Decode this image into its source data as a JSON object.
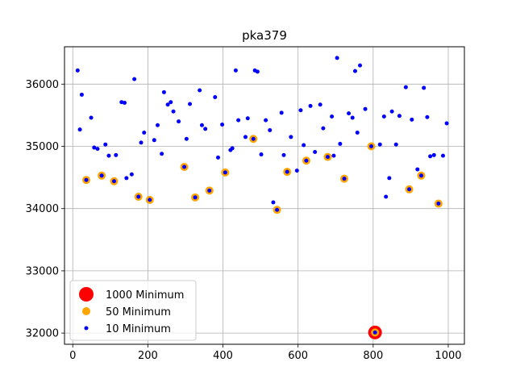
{
  "chart_data": {
    "type": "scatter",
    "title": "pka379",
    "xlabel": "",
    "ylabel": "",
    "xlim": [
      -22,
      1043
    ],
    "ylim": [
      31820,
      36600
    ],
    "xticks": [
      0,
      200,
      400,
      600,
      800,
      1000
    ],
    "yticks": [
      32000,
      33000,
      34000,
      35000,
      36000
    ],
    "grid": true,
    "legend_position": "lower-left",
    "series": [
      {
        "name": "1000 Minimum",
        "color": "#ff0000",
        "marker": "large-circle",
        "points": [
          [
            805,
            32010
          ]
        ]
      },
      {
        "name": "50 Minimum",
        "color": "#ffa500",
        "marker": "medium-circle",
        "points": [
          [
            36,
            34460
          ],
          [
            77,
            34530
          ],
          [
            110,
            34440
          ],
          [
            175,
            34190
          ],
          [
            205,
            34140
          ],
          [
            297,
            34670
          ],
          [
            326,
            34180
          ],
          [
            364,
            34290
          ],
          [
            406,
            34580
          ],
          [
            481,
            35120
          ],
          [
            544,
            33980
          ],
          [
            571,
            34590
          ],
          [
            622,
            34770
          ],
          [
            679,
            34830
          ],
          [
            723,
            34480
          ],
          [
            795,
            35000
          ],
          [
            805,
            32010
          ],
          [
            896,
            34310
          ],
          [
            928,
            34530
          ],
          [
            974,
            34080
          ]
        ]
      },
      {
        "name": "10 Minimum",
        "color": "#0000ff",
        "marker": "small-circle",
        "points": [
          [
            13,
            36220
          ],
          [
            19,
            35270
          ],
          [
            24,
            35830
          ],
          [
            36,
            34460
          ],
          [
            49,
            35460
          ],
          [
            57,
            34980
          ],
          [
            66,
            34960
          ],
          [
            77,
            34530
          ],
          [
            87,
            35030
          ],
          [
            96,
            34850
          ],
          [
            110,
            34440
          ],
          [
            115,
            34860
          ],
          [
            130,
            35710
          ],
          [
            138,
            35700
          ],
          [
            143,
            34490
          ],
          [
            157,
            34550
          ],
          [
            164,
            36080
          ],
          [
            175,
            34190
          ],
          [
            182,
            35060
          ],
          [
            190,
            35220
          ],
          [
            205,
            34140
          ],
          [
            217,
            35100
          ],
          [
            226,
            35340
          ],
          [
            237,
            34880
          ],
          [
            243,
            35870
          ],
          [
            253,
            35670
          ],
          [
            261,
            35710
          ],
          [
            268,
            35560
          ],
          [
            282,
            35400
          ],
          [
            297,
            34670
          ],
          [
            303,
            35120
          ],
          [
            312,
            35680
          ],
          [
            326,
            34180
          ],
          [
            338,
            35900
          ],
          [
            344,
            35340
          ],
          [
            353,
            35280
          ],
          [
            364,
            34290
          ],
          [
            379,
            35790
          ],
          [
            387,
            34820
          ],
          [
            398,
            35350
          ],
          [
            406,
            34580
          ],
          [
            420,
            34940
          ],
          [
            425,
            34970
          ],
          [
            434,
            36220
          ],
          [
            441,
            35420
          ],
          [
            460,
            35150
          ],
          [
            466,
            35450
          ],
          [
            481,
            35120
          ],
          [
            485,
            36220
          ],
          [
            492,
            36200
          ],
          [
            502,
            34870
          ],
          [
            514,
            35420
          ],
          [
            525,
            35260
          ],
          [
            534,
            34100
          ],
          [
            544,
            33980
          ],
          [
            556,
            35540
          ],
          [
            562,
            34860
          ],
          [
            571,
            34590
          ],
          [
            581,
            35150
          ],
          [
            597,
            34610
          ],
          [
            607,
            35580
          ],
          [
            615,
            35020
          ],
          [
            622,
            34770
          ],
          [
            633,
            35650
          ],
          [
            645,
            34910
          ],
          [
            659,
            35670
          ],
          [
            667,
            35290
          ],
          [
            679,
            34830
          ],
          [
            690,
            35480
          ],
          [
            695,
            34850
          ],
          [
            704,
            36420
          ],
          [
            712,
            35040
          ],
          [
            723,
            34480
          ],
          [
            735,
            35530
          ],
          [
            745,
            35460
          ],
          [
            752,
            36210
          ],
          [
            758,
            35220
          ],
          [
            765,
            36300
          ],
          [
            779,
            35600
          ],
          [
            795,
            35000
          ],
          [
            805,
            32010
          ],
          [
            818,
            35030
          ],
          [
            829,
            35480
          ],
          [
            834,
            34190
          ],
          [
            843,
            34490
          ],
          [
            850,
            35560
          ],
          [
            861,
            35030
          ],
          [
            870,
            35490
          ],
          [
            887,
            35950
          ],
          [
            896,
            34310
          ],
          [
            903,
            35430
          ],
          [
            918,
            34630
          ],
          [
            928,
            34530
          ],
          [
            935,
            35940
          ],
          [
            944,
            35470
          ],
          [
            952,
            34840
          ],
          [
            962,
            34860
          ],
          [
            974,
            34080
          ],
          [
            986,
            34850
          ],
          [
            996,
            35370
          ]
        ]
      }
    ]
  }
}
